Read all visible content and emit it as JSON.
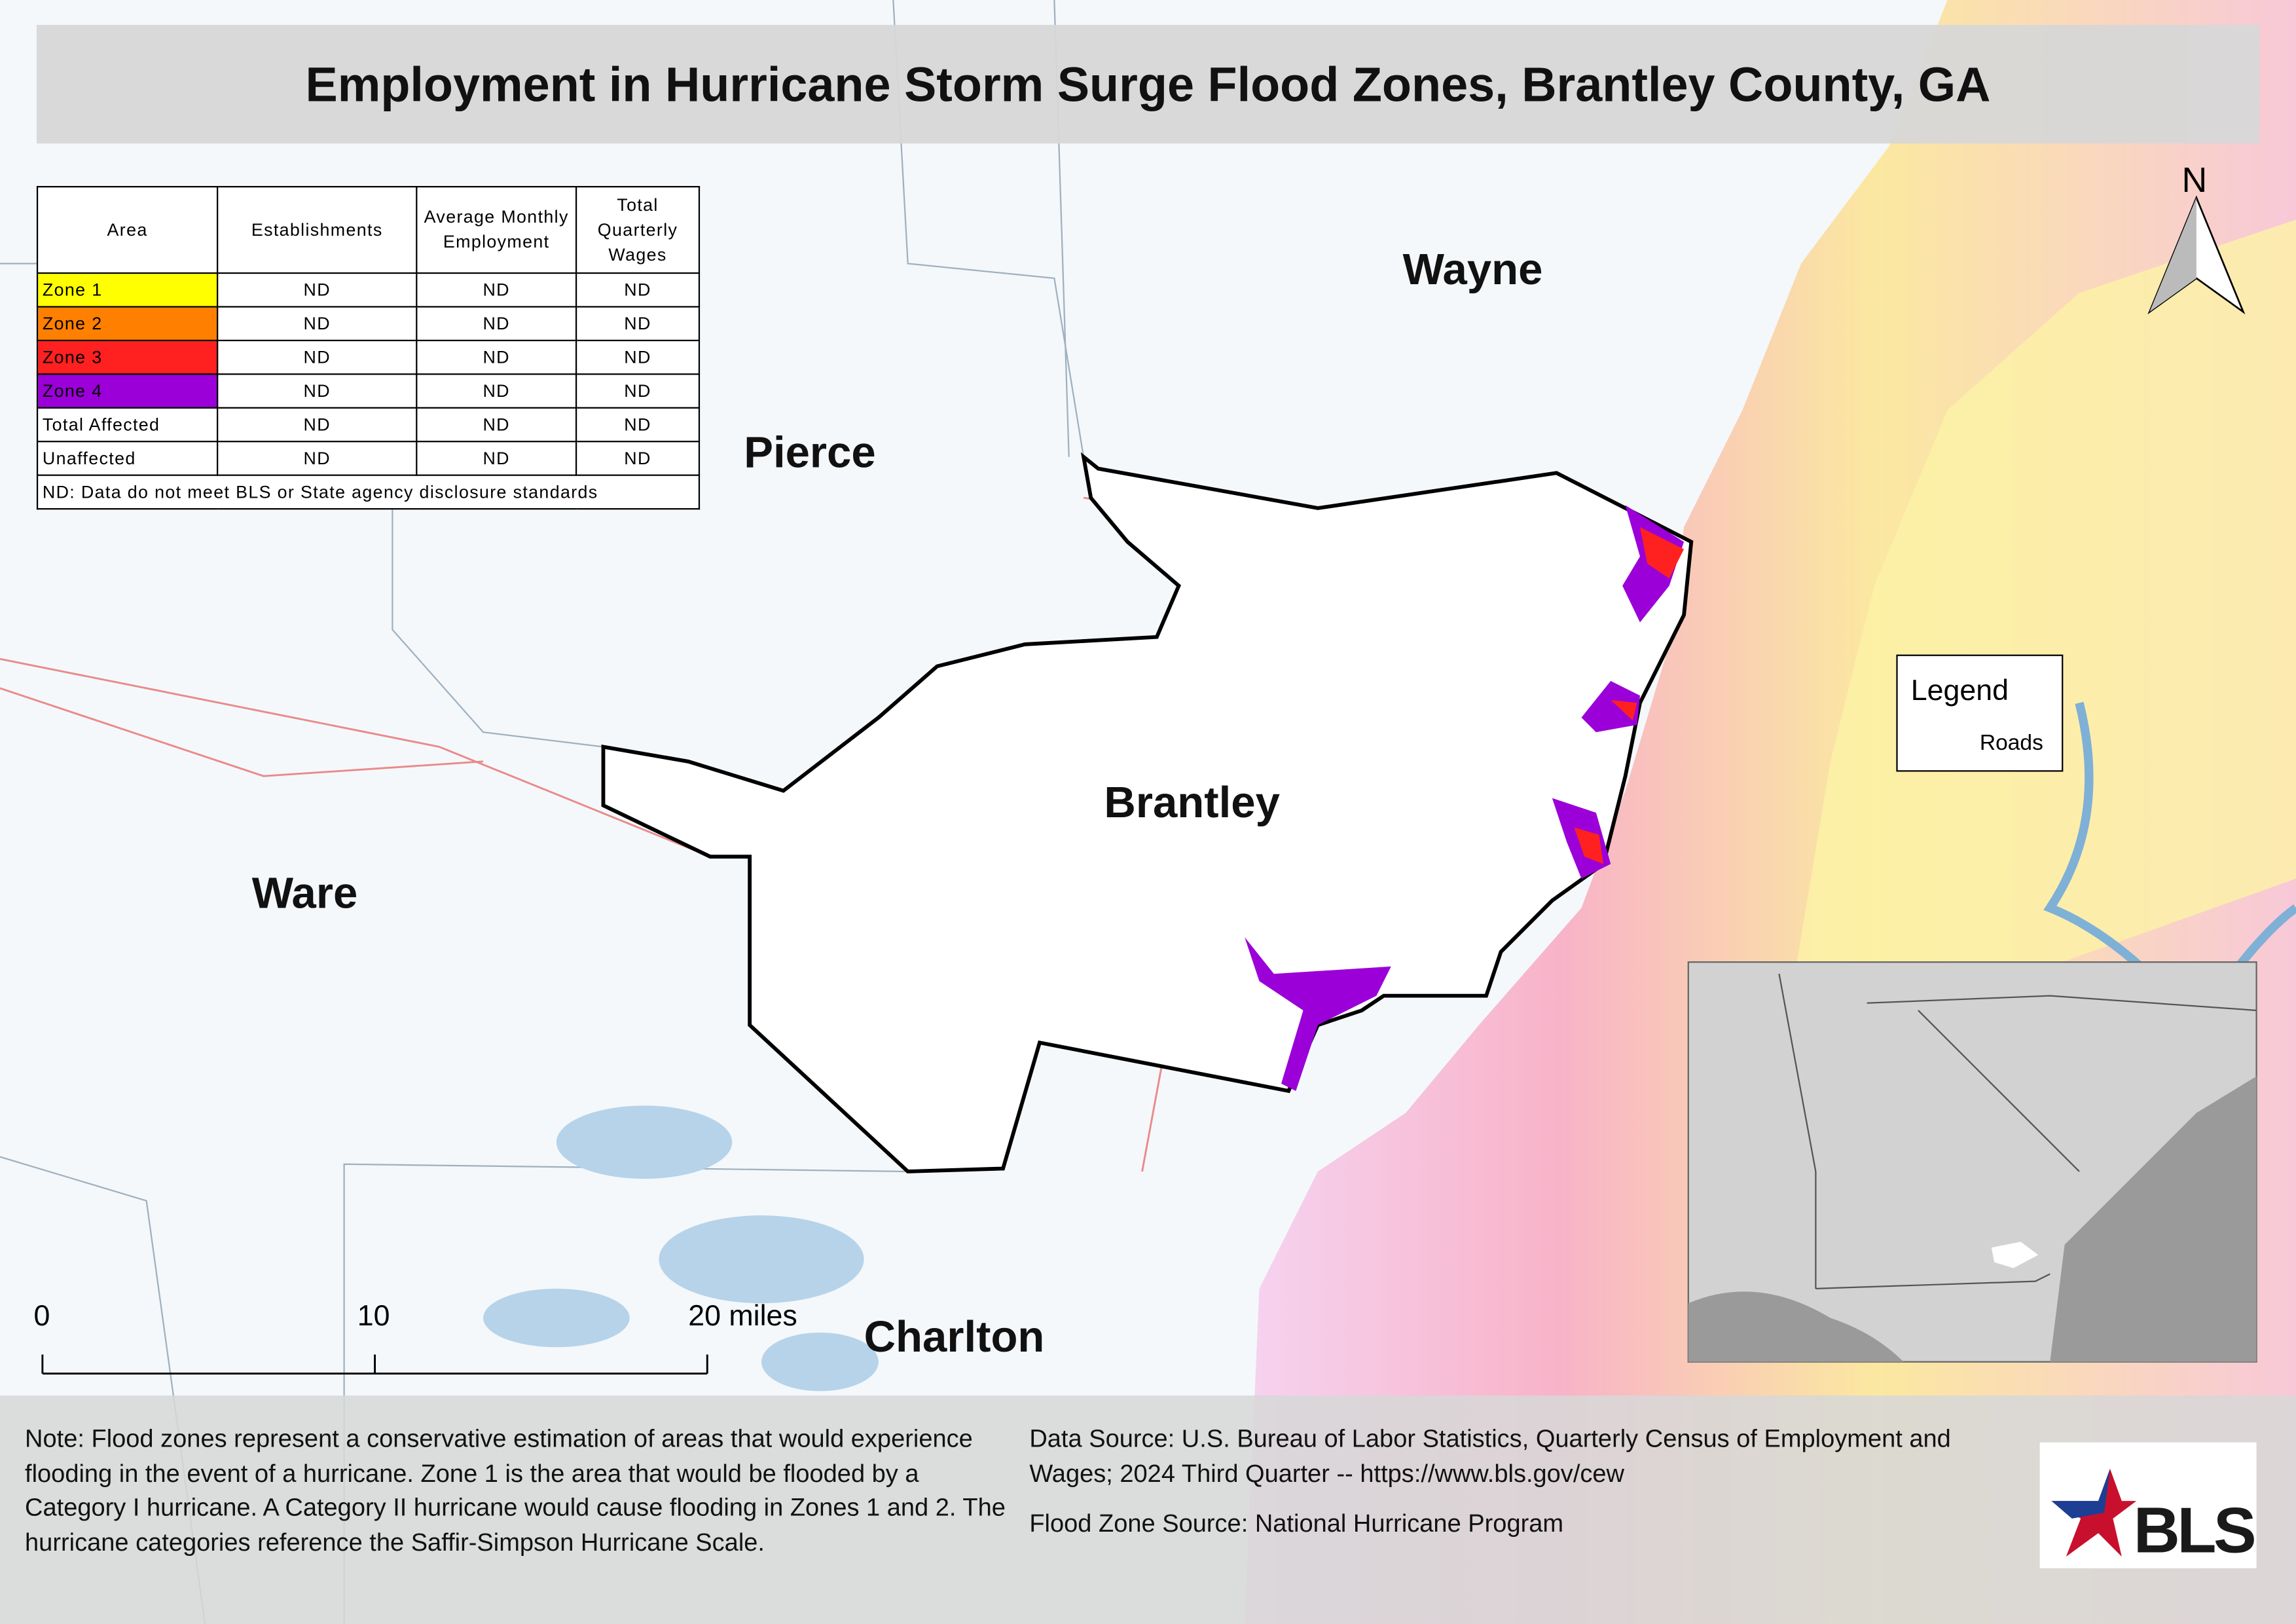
{
  "title": "Employment in Hurricane Storm Surge Flood Zones, Brantley County, GA",
  "table": {
    "header": [
      "Area",
      "Establishments",
      "Average Monthly Employment",
      "Total Quarterly Wages"
    ],
    "rows": [
      [
        "Zone 1",
        "ND",
        "ND",
        "ND"
      ],
      [
        "Zone 2",
        "ND",
        "ND",
        "ND"
      ],
      [
        "Zone 3",
        "ND",
        "ND",
        "ND"
      ],
      [
        "Zone 4",
        "ND",
        "ND",
        "ND"
      ],
      [
        "Total Affected",
        "ND",
        "ND",
        "ND"
      ],
      [
        "Unaffected",
        "ND",
        "ND",
        "ND"
      ]
    ],
    "footnote": "ND: Data do not meet BLS or State agency disclosure standards"
  },
  "counties": [
    "Wayne",
    "Pierce",
    "Brantley",
    "Ware",
    "Charlton"
  ],
  "legend": {
    "title": "Legend",
    "items": [
      "Roads"
    ]
  },
  "scale_bar": [
    "0",
    "10",
    "20 miles"
  ],
  "north": "N",
  "note": "Note: Flood zones represent a conservative estimation of areas that would experience flooding in the event of a hurricane. Zone 1 is the area that would be flooded by a Category I hurricane. A Category II hurricane would cause flooding in Zones 1 and 2. The hurricane categories reference the Saffir-Simpson Hurricane Scale.",
  "data_source": "Data Source: U.S. Bureau of Labor Statistics, Quarterly Census of Employment and Wages; 2024 Third Quarter -- https://www.bls.gov/cew",
  "flood_source": "Flood Zone Source: National Hurricane Program",
  "logo": "BLS"
}
